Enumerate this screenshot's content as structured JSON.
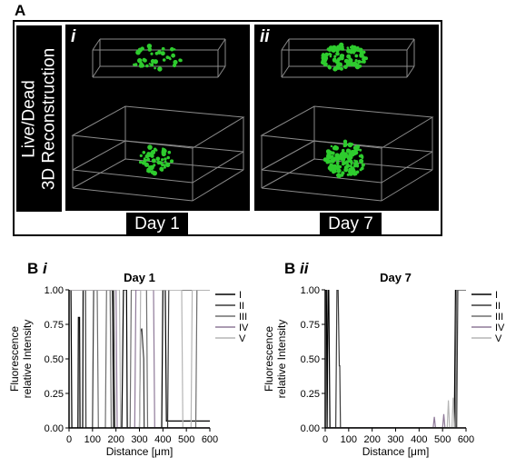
{
  "panel_a": {
    "letter": "A",
    "side_label_line1": "Live/Dead",
    "side_label_line2": "3D Reconstruction",
    "images": [
      {
        "roman": "i",
        "day_label": "Day 1"
      },
      {
        "roman": "ii",
        "day_label": "Day 7"
      }
    ],
    "colors": {
      "background": "#000000",
      "live_cells": "#2ecc2e",
      "box_edges": "#8a8a8a"
    }
  },
  "panel_b_i": {
    "letter": "B",
    "roman": "i"
  },
  "panel_b_ii": {
    "letter": "B",
    "roman": "ii"
  },
  "chart_data": [
    {
      "type": "line",
      "title": "Day 1",
      "xlabel": "Distance [μm]",
      "ylabel": "Fluorescence relative Intensity",
      "xlim": [
        0,
        600
      ],
      "ylim": [
        0,
        1.0
      ],
      "xticks": [
        "0",
        "100",
        "200",
        "300",
        "400",
        "500",
        "600"
      ],
      "yticks": [
        "0.00",
        "0.25",
        "0.50",
        "0.75",
        "1.00"
      ],
      "legend_position": "right",
      "series": [
        {
          "name": "I",
          "color": "#000000",
          "x": [
            0,
            8,
            12,
            38,
            40,
            45,
            47,
            50,
            58,
            60,
            185,
            190,
            225,
            232,
            245,
            248,
            395,
            400,
            410,
            415,
            600
          ],
          "y": [
            1,
            1,
            0,
            0,
            0.8,
            0.8,
            0,
            0,
            0,
            1,
            1,
            0,
            0,
            1,
            1,
            0,
            0,
            1,
            1,
            0.05,
            0.05
          ]
        },
        {
          "name": "II",
          "color": "#3a3a3a",
          "x": [
            0,
            70,
            72,
            100,
            105,
            190,
            195,
            300,
            305,
            310,
            318,
            320,
            420,
            425,
            600
          ],
          "y": [
            1,
            1,
            0,
            0,
            1,
            1,
            0,
            0,
            0.7,
            0.72,
            0.5,
            0,
            0,
            1,
            1
          ]
        },
        {
          "name": "III",
          "color": "#6e6e6e",
          "x": [
            0,
            120,
            125,
            155,
            160,
            175,
            180,
            260,
            265,
            330,
            335,
            540,
            545,
            600
          ],
          "y": [
            1,
            1,
            0,
            0,
            1,
            1,
            0,
            0,
            1,
            1,
            0,
            0,
            1,
            1
          ]
        },
        {
          "name": "IV",
          "color": "#8f7a99",
          "x": [
            0,
            200,
            205,
            280,
            285,
            360,
            365,
            600
          ],
          "y": [
            1,
            1,
            0,
            0,
            1,
            1,
            0,
            0
          ]
        },
        {
          "name": "V",
          "color": "#b5b5b5",
          "x": [
            0,
            215,
            220,
            300,
            305,
            480,
            485,
            520,
            525,
            600
          ],
          "y": [
            1,
            1,
            0,
            0,
            1,
            1,
            0,
            0,
            1,
            1
          ]
        }
      ]
    },
    {
      "type": "line",
      "title": "Day 7",
      "xlabel": "Distance [μm]",
      "ylabel": "Fluorescence relative Intensity",
      "xlim": [
        0,
        600
      ],
      "ylim": [
        0,
        1.0
      ],
      "xticks": [
        "0",
        "100",
        "200",
        "300",
        "400",
        "500",
        "600"
      ],
      "yticks": [
        "0.00",
        "0.25",
        "0.50",
        "0.75",
        "1.00"
      ],
      "legend_position": "right",
      "series": [
        {
          "name": "I",
          "color": "#000000",
          "x": [
            0,
            5,
            8,
            12,
            15,
            20,
            25,
            550,
            555,
            560,
            570,
            600
          ],
          "y": [
            1,
            1,
            0,
            1,
            1,
            0,
            0,
            0,
            1,
            1,
            1,
            1
          ]
        },
        {
          "name": "II",
          "color": "#3a3a3a",
          "x": [
            0,
            45,
            50,
            55,
            60,
            62,
            65,
            560,
            565,
            575,
            600
          ],
          "y": [
            0,
            0,
            1,
            1,
            0.45,
            0.45,
            0,
            0,
            1,
            1,
            1
          ]
        },
        {
          "name": "III",
          "color": "#6e6e6e",
          "x": [
            0,
            555,
            560,
            570,
            600
          ],
          "y": [
            0,
            0,
            1,
            1,
            1
          ]
        },
        {
          "name": "IV",
          "color": "#8f7a99",
          "x": [
            0,
            460,
            465,
            470,
            500,
            505,
            510,
            600
          ],
          "y": [
            0,
            0,
            0.08,
            0,
            0,
            0.1,
            0,
            0
          ]
        },
        {
          "name": "V",
          "color": "#b5b5b5",
          "x": [
            0,
            520,
            525,
            530,
            540,
            545,
            550,
            600
          ],
          "y": [
            0,
            0,
            0.2,
            0,
            0,
            0.22,
            0,
            0
          ]
        }
      ]
    }
  ]
}
